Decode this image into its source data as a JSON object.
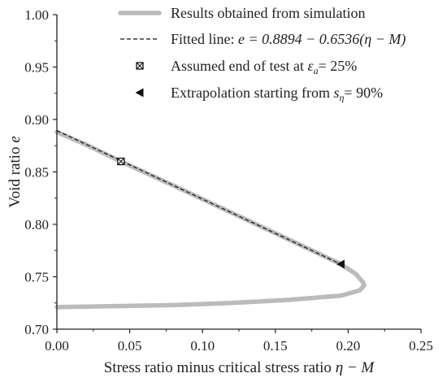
{
  "chart_data": {
    "type": "line",
    "title": "",
    "xlabel": "Stress ratio minus critical stress ratio",
    "xlabel_math": "η − M",
    "ylabel": "Void ratio",
    "ylabel_math": "e",
    "xlim": [
      0.0,
      0.25
    ],
    "ylim": [
      0.7,
      1.0
    ],
    "x_ticks": [
      "0.00",
      "0.05",
      "0.10",
      "0.15",
      "0.20",
      "0.25"
    ],
    "y_ticks": [
      "0.70",
      "0.75",
      "0.80",
      "0.85",
      "0.90",
      "0.95",
      "1.00"
    ],
    "grid": false,
    "legend_position": "top-right",
    "colors": {
      "simulation": "#bbbbbb",
      "fitted": "#111111",
      "markers": "#111111",
      "axis": "#222222"
    },
    "series": [
      {
        "name": "Results obtained from simulation",
        "style": "thick-gray-line",
        "points": [
          [
            0.0,
            0.888
          ],
          [
            0.02,
            0.876
          ],
          [
            0.044,
            0.86
          ],
          [
            0.08,
            0.837
          ],
          [
            0.12,
            0.811
          ],
          [
            0.16,
            0.785
          ],
          [
            0.195,
            0.762
          ],
          [
            0.205,
            0.753
          ],
          [
            0.21,
            0.745
          ],
          [
            0.211,
            0.742
          ],
          [
            0.208,
            0.737
          ],
          [
            0.195,
            0.732
          ],
          [
            0.16,
            0.728
          ],
          [
            0.12,
            0.725
          ],
          [
            0.08,
            0.723
          ],
          [
            0.04,
            0.722
          ],
          [
            0.0,
            0.721
          ]
        ]
      },
      {
        "name": "Fitted line:",
        "equation": "e = 0.8894 − 0.6536(η − M)",
        "style": "dashed-line",
        "intercept": 0.8894,
        "slope": -0.6536,
        "x_range": [
          0.0,
          0.195
        ]
      },
      {
        "name": "Assumed end of test at",
        "condition": "ε_a = 25%",
        "style": "crossed-square-marker",
        "points": [
          [
            0.044,
            0.86
          ]
        ]
      },
      {
        "name": "Extrapolation starting from",
        "condition": "s_η = 90%",
        "style": "left-triangle-marker",
        "points": [
          [
            0.195,
            0.762
          ]
        ]
      }
    ],
    "legend": [
      {
        "text": "Results obtained from simulation"
      },
      {
        "text_prefix": "Fitted line: ",
        "math": "e = 0.8894 − 0.6536(η − M)"
      },
      {
        "text_prefix": "Assumed end of test at ",
        "symbol": "ε",
        "sub": "a",
        "suffix": "= 25%"
      },
      {
        "text_prefix": "Extrapolation starting from ",
        "symbol": "s",
        "sub": "η",
        "suffix": "= 90%"
      }
    ]
  }
}
